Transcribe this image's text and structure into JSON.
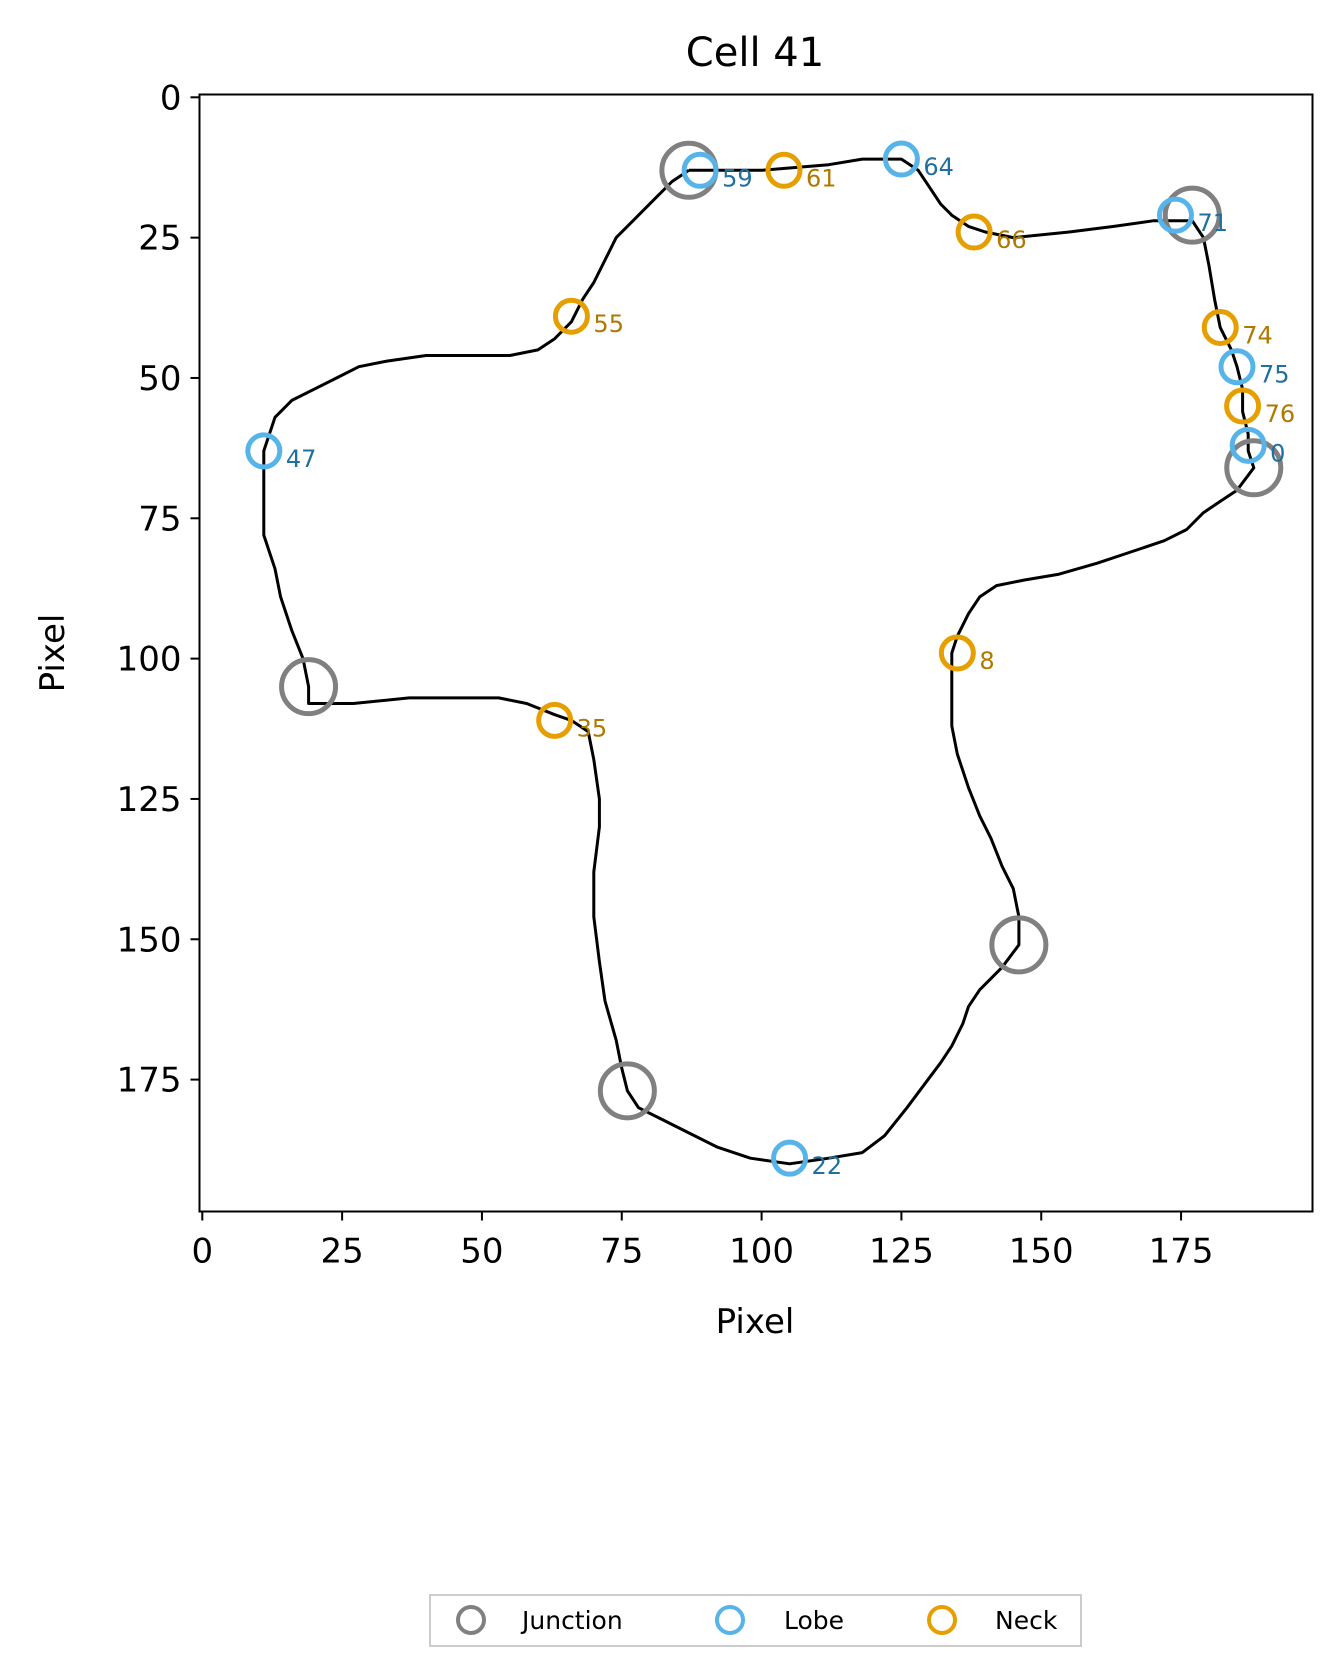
{
  "chart_data": {
    "type": "scatter",
    "title": "Cell 41",
    "xlabel": "Pixel",
    "ylabel": "Pixel",
    "xlim": [
      -0.5,
      198.5
    ],
    "ylim": [
      198.5,
      -0.5
    ],
    "y_inverted": true,
    "xticks": [
      0,
      25,
      50,
      75,
      100,
      125,
      150,
      175
    ],
    "yticks": [
      0,
      25,
      50,
      75,
      100,
      125,
      150,
      175
    ],
    "legend_position": "bottom-center",
    "grid": false,
    "colors": {
      "contour": "#000000",
      "junction": "#808080",
      "lobe": "#56B4E9",
      "neck": "#E69F00",
      "lobe_label": "#1f6f9f",
      "neck_label": "#b07800"
    },
    "contour": [
      [
        87,
        13
      ],
      [
        100,
        13
      ],
      [
        112,
        12
      ],
      [
        118,
        11
      ],
      [
        125,
        11
      ],
      [
        128,
        13
      ],
      [
        130,
        16
      ],
      [
        132,
        19
      ],
      [
        134,
        21
      ],
      [
        137,
        23
      ],
      [
        140,
        24
      ],
      [
        145,
        25
      ],
      [
        155,
        24
      ],
      [
        163,
        23
      ],
      [
        170,
        22
      ],
      [
        177,
        22
      ],
      [
        179,
        25
      ],
      [
        180,
        30
      ],
      [
        181,
        36
      ],
      [
        182,
        41
      ],
      [
        184,
        45
      ],
      [
        185,
        48
      ],
      [
        186,
        52
      ],
      [
        186,
        56
      ],
      [
        187,
        60
      ],
      [
        187,
        63
      ],
      [
        188,
        66
      ],
      [
        185,
        70
      ],
      [
        182,
        72
      ],
      [
        179,
        74
      ],
      [
        176,
        77
      ],
      [
        172,
        79
      ],
      [
        166,
        81
      ],
      [
        160,
        83
      ],
      [
        153,
        85
      ],
      [
        147,
        86
      ],
      [
        142,
        87
      ],
      [
        139,
        89
      ],
      [
        137,
        92
      ],
      [
        135,
        96
      ],
      [
        134,
        99
      ],
      [
        134,
        103
      ],
      [
        134,
        107
      ],
      [
        134,
        112
      ],
      [
        135,
        117
      ],
      [
        137,
        123
      ],
      [
        139,
        128
      ],
      [
        141,
        132
      ],
      [
        143,
        137
      ],
      [
        145,
        141
      ],
      [
        146,
        146
      ],
      [
        146,
        151
      ],
      [
        143,
        155
      ],
      [
        139,
        159
      ],
      [
        137,
        162
      ],
      [
        136,
        165
      ],
      [
        134,
        169
      ],
      [
        132,
        172
      ],
      [
        129,
        176
      ],
      [
        126,
        180
      ],
      [
        122,
        185
      ],
      [
        118,
        188
      ],
      [
        112,
        189
      ],
      [
        105,
        190
      ],
      [
        98,
        189
      ],
      [
        92,
        187
      ],
      [
        86,
        184
      ],
      [
        82,
        182
      ],
      [
        78,
        180
      ],
      [
        76,
        177
      ],
      [
        75,
        173
      ],
      [
        74,
        168
      ],
      [
        72,
        161
      ],
      [
        71,
        154
      ],
      [
        70,
        146
      ],
      [
        70,
        138
      ],
      [
        71,
        130
      ],
      [
        71,
        125
      ],
      [
        70,
        118
      ],
      [
        69,
        113
      ],
      [
        66,
        111
      ],
      [
        63,
        110
      ],
      [
        58,
        108
      ],
      [
        53,
        107
      ],
      [
        45,
        107
      ],
      [
        37,
        107
      ],
      [
        27,
        108
      ],
      [
        19,
        108
      ],
      [
        19,
        105
      ],
      [
        18,
        100
      ],
      [
        16,
        95
      ],
      [
        14,
        89
      ],
      [
        13,
        84
      ],
      [
        11,
        78
      ],
      [
        11,
        70
      ],
      [
        11,
        63
      ],
      [
        13,
        57
      ],
      [
        16,
        54
      ],
      [
        20,
        52
      ],
      [
        24,
        50
      ],
      [
        28,
        48
      ],
      [
        33,
        47
      ],
      [
        40,
        46
      ],
      [
        48,
        46
      ],
      [
        55,
        46
      ],
      [
        60,
        45
      ],
      [
        63,
        43
      ],
      [
        66,
        40
      ],
      [
        68,
        36
      ],
      [
        70,
        33
      ],
      [
        72,
        29
      ],
      [
        74,
        25
      ],
      [
        78,
        21
      ],
      [
        81,
        18
      ],
      [
        84,
        15
      ],
      [
        87,
        13
      ]
    ],
    "series": [
      {
        "name": "Junction",
        "points": [
          [
            87,
            13
          ],
          [
            177,
            21
          ],
          [
            188,
            66
          ],
          [
            19,
            105
          ],
          [
            146,
            151
          ],
          [
            76,
            177
          ]
        ]
      },
      {
        "name": "Lobe",
        "points": [
          {
            "x": 89,
            "y": 13,
            "label": "59"
          },
          {
            "x": 125,
            "y": 11,
            "label": "64"
          },
          {
            "x": 174,
            "y": 21,
            "label": "71"
          },
          {
            "x": 185,
            "y": 48,
            "label": "75"
          },
          {
            "x": 187,
            "y": 62,
            "label": "0"
          },
          {
            "x": 11,
            "y": 63,
            "label": "47"
          },
          {
            "x": 105,
            "y": 189,
            "label": "22"
          }
        ]
      },
      {
        "name": "Neck",
        "points": [
          {
            "x": 104,
            "y": 13,
            "label": "61"
          },
          {
            "x": 138,
            "y": 24,
            "label": "66"
          },
          {
            "x": 66,
            "y": 39,
            "label": "55"
          },
          {
            "x": 182,
            "y": 41,
            "label": "74"
          },
          {
            "x": 186,
            "y": 55,
            "label": "76"
          },
          {
            "x": 135,
            "y": 99,
            "label": "8"
          },
          {
            "x": 63,
            "y": 111,
            "label": "35"
          }
        ]
      }
    ]
  }
}
